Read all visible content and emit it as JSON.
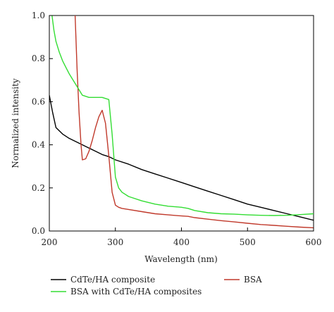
{
  "chart_data": {
    "type": "line",
    "title": "",
    "xlabel": "Wavelength (nm)",
    "ylabel": "Normalized intensity",
    "xlim": [
      200,
      600
    ],
    "ylim": [
      0.0,
      1.0
    ],
    "xticks": [
      200,
      300,
      400,
      500,
      600
    ],
    "yticks": [
      0.0,
      0.2,
      0.4,
      0.6,
      0.8,
      1.0
    ],
    "xtick_labels": [
      "200",
      "300",
      "400",
      "500",
      "600"
    ],
    "ytick_labels": [
      "0.0",
      "0.2",
      "0.4",
      "0.6",
      "0.8",
      "1.0"
    ],
    "grid": false,
    "legend_position": "bottom",
    "series": [
      {
        "name": "CdTe/HA composite",
        "color": "#000000",
        "x": [
          200,
          205,
          210,
          220,
          230,
          240,
          250,
          260,
          270,
          280,
          290,
          300,
          320,
          340,
          360,
          380,
          400,
          420,
          440,
          460,
          480,
          500,
          520,
          540,
          560,
          580,
          600
        ],
        "y": [
          0.63,
          0.55,
          0.48,
          0.45,
          0.43,
          0.415,
          0.4,
          0.385,
          0.37,
          0.355,
          0.345,
          0.33,
          0.31,
          0.285,
          0.265,
          0.245,
          0.225,
          0.205,
          0.185,
          0.165,
          0.145,
          0.125,
          0.11,
          0.095,
          0.08,
          0.065,
          0.05
        ]
      },
      {
        "name": "BSA",
        "color": "#c0392b",
        "x": [
          239,
          242,
          245,
          248,
          250,
          255,
          260,
          265,
          270,
          275,
          280,
          285,
          290,
          295,
          300,
          305,
          310,
          320,
          340,
          360,
          380,
          400,
          410,
          420,
          440,
          460,
          480,
          500,
          520,
          540,
          560,
          580,
          600
        ],
        "y": [
          1.0,
          0.75,
          0.55,
          0.4,
          0.33,
          0.335,
          0.37,
          0.42,
          0.48,
          0.53,
          0.56,
          0.5,
          0.35,
          0.18,
          0.12,
          0.11,
          0.105,
          0.1,
          0.09,
          0.08,
          0.075,
          0.07,
          0.068,
          0.062,
          0.055,
          0.048,
          0.042,
          0.036,
          0.03,
          0.026,
          0.022,
          0.018,
          0.015
        ]
      },
      {
        "name": "BSA with CdTe/HA composites",
        "color": "#33dd33",
        "x": [
          204,
          207,
          210,
          215,
          220,
          225,
          230,
          240,
          250,
          260,
          270,
          280,
          290,
          295,
          300,
          305,
          310,
          320,
          340,
          360,
          380,
          400,
          410,
          420,
          440,
          460,
          480,
          500,
          520,
          540,
          560,
          580,
          600
        ],
        "y": [
          1.0,
          0.93,
          0.88,
          0.83,
          0.79,
          0.76,
          0.73,
          0.68,
          0.63,
          0.62,
          0.62,
          0.62,
          0.61,
          0.45,
          0.25,
          0.2,
          0.18,
          0.16,
          0.14,
          0.125,
          0.115,
          0.11,
          0.105,
          0.095,
          0.085,
          0.08,
          0.078,
          0.075,
          0.073,
          0.072,
          0.073,
          0.076,
          0.08
        ]
      }
    ]
  }
}
